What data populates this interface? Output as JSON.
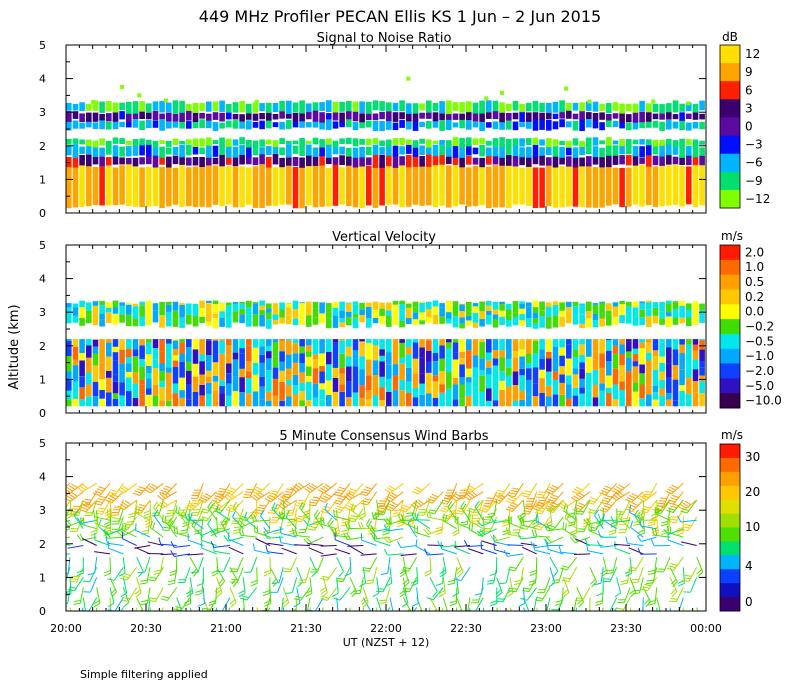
{
  "figure": {
    "title": "449 MHz Profiler PECAN Ellis KS   1 Jun –  2 Jun 2015",
    "ylabel": "Altitude (km)",
    "xlabel": "UT  (NZST + 12)",
    "footnote": "Simple filtering applied",
    "x_ticks": [
      "20:00",
      "20:30",
      "21:00",
      "21:30",
      "22:00",
      "22:30",
      "23:00",
      "23:30",
      "00:00"
    ]
  },
  "chart_data": [
    {
      "type": "heatmap",
      "title": "Signal to Noise Ratio",
      "units": "dB",
      "xlim_minutes": [
        0,
        240
      ],
      "ylim": [
        0,
        5
      ],
      "yticks": [
        "0",
        "1",
        "2",
        "3",
        "4",
        "5"
      ],
      "colorbar": {
        "labels": [
          "12",
          "9",
          "6",
          "3",
          "0",
          "−3",
          "−6",
          "−9",
          "−12"
        ],
        "colors": [
          "#ffe000",
          "#ffa500",
          "#ff2000",
          "#3a0070",
          "#5a0aa0",
          "#0010ff",
          "#00b4ff",
          "#00e070",
          "#80ff00"
        ]
      },
      "layers": [
        {
          "alt_from": 0.2,
          "alt_to": 1.4,
          "snr_db": 10
        },
        {
          "alt_from": 1.4,
          "alt_to": 1.7,
          "snr_db": 3
        },
        {
          "alt_from": 1.7,
          "alt_to": 2.0,
          "snr_db": -6
        },
        {
          "alt_from": 2.0,
          "alt_to": 2.2,
          "snr_db": -10
        },
        {
          "alt_from": 2.5,
          "alt_to": 2.75,
          "snr_db": -6
        },
        {
          "alt_from": 2.75,
          "alt_to": 3.0,
          "snr_db": 1
        },
        {
          "alt_from": 3.0,
          "alt_to": 3.3,
          "snr_db": -9
        }
      ]
    },
    {
      "type": "heatmap",
      "title": "Vertical Velocity",
      "units": "m/s",
      "xlim_minutes": [
        0,
        240
      ],
      "ylim": [
        0,
        5
      ],
      "yticks": [
        "0",
        "1",
        "2",
        "3",
        "4",
        "5"
      ],
      "colorbar": {
        "labels": [
          "2.0",
          "1.0",
          "0.5",
          "0.2",
          "0.0",
          "−0.2",
          "−0.5",
          "−1.0",
          "−2.0",
          "−5.0",
          "−10.0"
        ],
        "colors": [
          "#ff1a00",
          "#ff6a00",
          "#ffa000",
          "#ffc800",
          "#ffff00",
          "#40dd00",
          "#00e8e8",
          "#00a8ff",
          "#1040ff",
          "#3010c0",
          "#3a0050"
        ]
      },
      "layers": [
        {
          "alt_from": 0.2,
          "alt_to": 2.2,
          "w_ms": "mixed -2.0 to 1.0"
        },
        {
          "alt_from": 2.6,
          "alt_to": 3.3,
          "w_ms": "mixed -0.5 to 0.2"
        }
      ]
    },
    {
      "type": "wind_barbs",
      "title": "5 Minute Consensus Wind Barbs",
      "units": "m/s",
      "xlim_minutes": [
        0,
        240
      ],
      "ylim": [
        0,
        5
      ],
      "yticks": [
        "0",
        "1",
        "2",
        "3",
        "4",
        "5"
      ],
      "colorbar": {
        "labels": [
          "30",
          "20",
          "10",
          "4",
          "0"
        ],
        "colors": [
          "#ff1a00",
          "#ff6a00",
          "#ffa000",
          "#ffc800",
          "#e0e000",
          "#a0e000",
          "#50e000",
          "#00e070",
          "#00b4ff",
          "#0a40ff",
          "#1010c0",
          "#3a0070"
        ]
      },
      "layers": [
        {
          "alt_from": 3.3,
          "alt_to": 3.8,
          "speed_ms": 18
        },
        {
          "alt_from": 2.8,
          "alt_to": 3.3,
          "speed_ms": 12
        },
        {
          "alt_from": 2.2,
          "alt_to": 2.8,
          "speed_ms": 8
        },
        {
          "alt_from": 1.7,
          "alt_to": 2.1,
          "speed_ms": 3
        },
        {
          "alt_from": 0.1,
          "alt_to": 1.6,
          "speed_ms": 9
        }
      ]
    }
  ]
}
